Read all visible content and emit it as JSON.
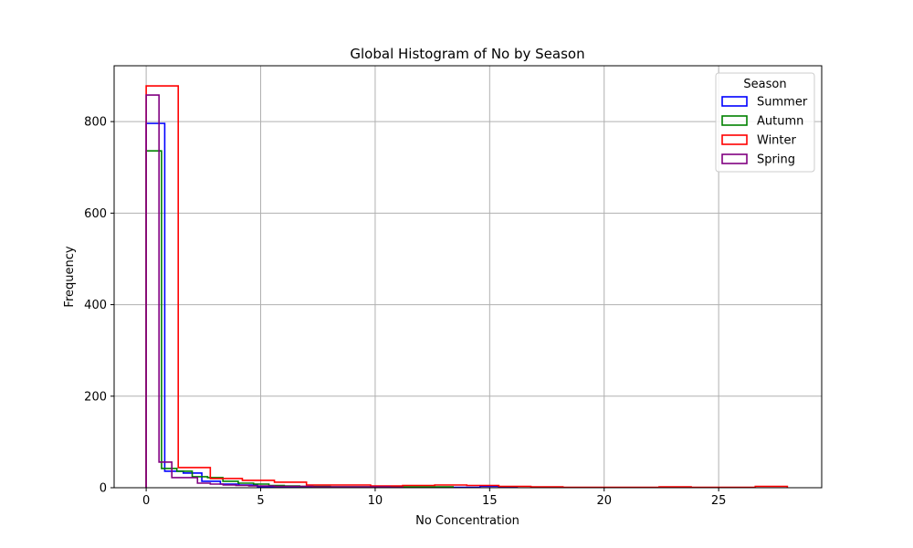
{
  "chart_data": {
    "type": "histogram",
    "title": "Global Histogram of No by Season",
    "xlabel": "No Concentration",
    "ylabel": "Frequency",
    "xlim": [
      -1.4,
      29.5
    ],
    "ylim": [
      0,
      922
    ],
    "x_ticks": [
      0,
      5,
      10,
      15,
      20,
      25
    ],
    "y_ticks": [
      0,
      200,
      400,
      600,
      800
    ],
    "grid": true,
    "legend": {
      "title": "Season",
      "placement": "top-right"
    },
    "series": [
      {
        "name": "Summer",
        "color": "#0000ff",
        "bin_width": 0.81,
        "frequencies": [
          796,
          36,
          32,
          14,
          8,
          6,
          2,
          1,
          1,
          1,
          1,
          1,
          1,
          1,
          1,
          1,
          1,
          1,
          3,
          2
        ]
      },
      {
        "name": "Autumn",
        "color": "#008000",
        "bin_width": 0.67,
        "frequencies": [
          736,
          42,
          36,
          24,
          22,
          14,
          10,
          8,
          5,
          4,
          3,
          3,
          2,
          2,
          2,
          2,
          2,
          2,
          2,
          2
        ]
      },
      {
        "name": "Winter",
        "color": "#ff0000",
        "bin_width": 1.4,
        "frequencies": [
          878,
          44,
          20,
          16,
          12,
          6,
          6,
          4,
          5,
          6,
          5,
          3,
          2,
          1,
          1,
          1,
          2,
          1,
          1,
          3
        ]
      },
      {
        "name": "Spring",
        "color": "#800080",
        "bin_width": 0.56,
        "frequencies": [
          858,
          56,
          22,
          22,
          10,
          8,
          6,
          5,
          4,
          4,
          3,
          3,
          3,
          2,
          2,
          2,
          2,
          2,
          2,
          1
        ]
      }
    ]
  }
}
